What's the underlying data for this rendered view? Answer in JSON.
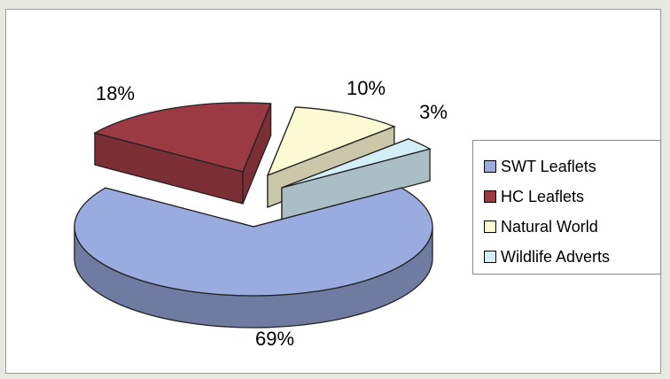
{
  "chart_data": {
    "type": "pie",
    "style": "3d-exploded",
    "categories": [
      "SWT Leaflets",
      "HC Leaflets",
      "Natural World",
      "Wildlife Adverts"
    ],
    "values": [
      69,
      18,
      10,
      3
    ],
    "labels": [
      "69%",
      "18%",
      "10%",
      "3%"
    ],
    "colors": [
      "#9aabe0",
      "#9b3a42",
      "#fcfad2",
      "#d4eef8"
    ],
    "title": "",
    "legend_position": "right"
  }
}
